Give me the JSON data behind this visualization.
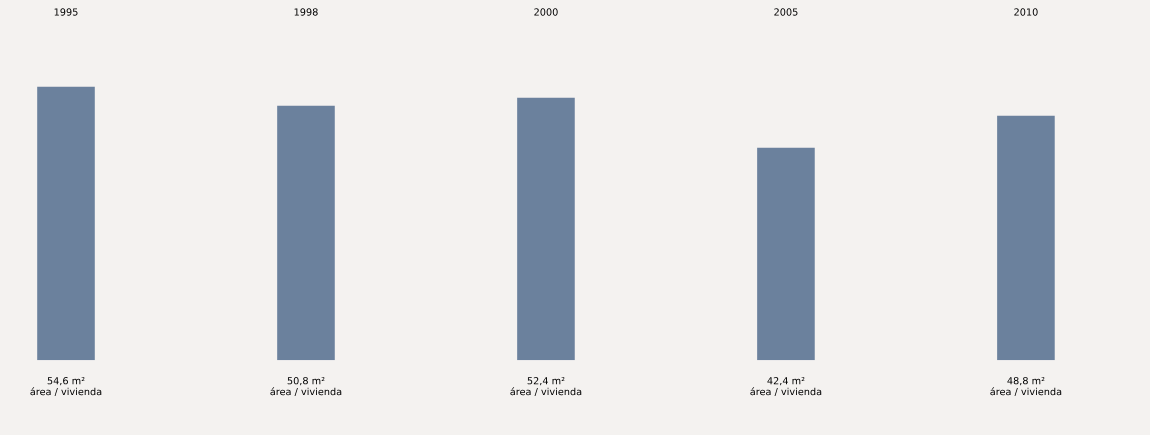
{
  "chart_data": {
    "type": "bar",
    "categories": [
      "1995",
      "1998",
      "2000",
      "2005",
      "2010"
    ],
    "values": [
      54.6,
      50.8,
      52.4,
      42.4,
      48.8
    ],
    "value_labels": [
      "54,6 m²\nárea / vivienda",
      "50,8 m²\nárea / vivienda",
      "52,4 m²\nárea / vivienda",
      "42,4 m²\nárea / vivienda",
      "48,8 m²\nárea / vivienda"
    ],
    "color": "#6b819d",
    "grid": false
  }
}
